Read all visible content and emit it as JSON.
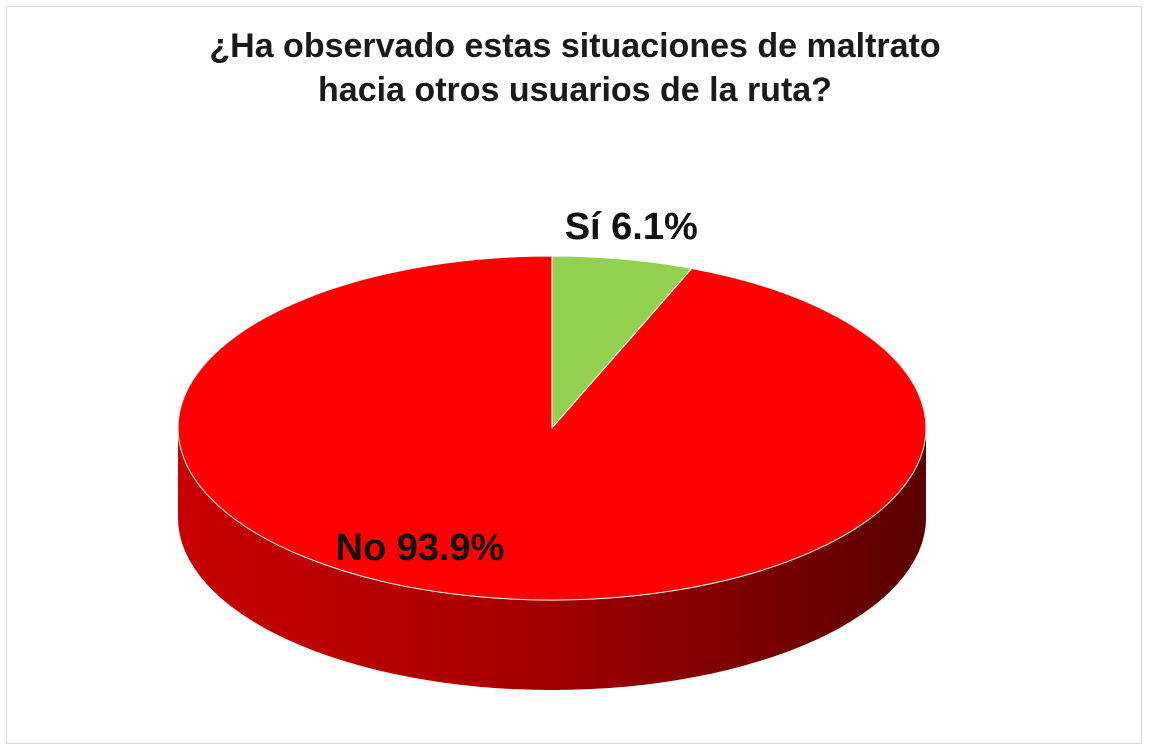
{
  "chart_data": {
    "type": "pie",
    "title": "¿Ha observado estas situaciones de maltrato hacia otros usuarios de la ruta?",
    "title_lines": [
      "¿Ha observado estas situaciones de maltrato",
      "hacia otros usuarios de la ruta?"
    ],
    "style": "3d",
    "slices": [
      {
        "label": "Sí",
        "value": 6.1,
        "display": "Sí 6.1%",
        "color": "#92d050"
      },
      {
        "label": "No",
        "value": 93.9,
        "display": "No 93.9%",
        "color": "#ff0000"
      }
    ]
  }
}
